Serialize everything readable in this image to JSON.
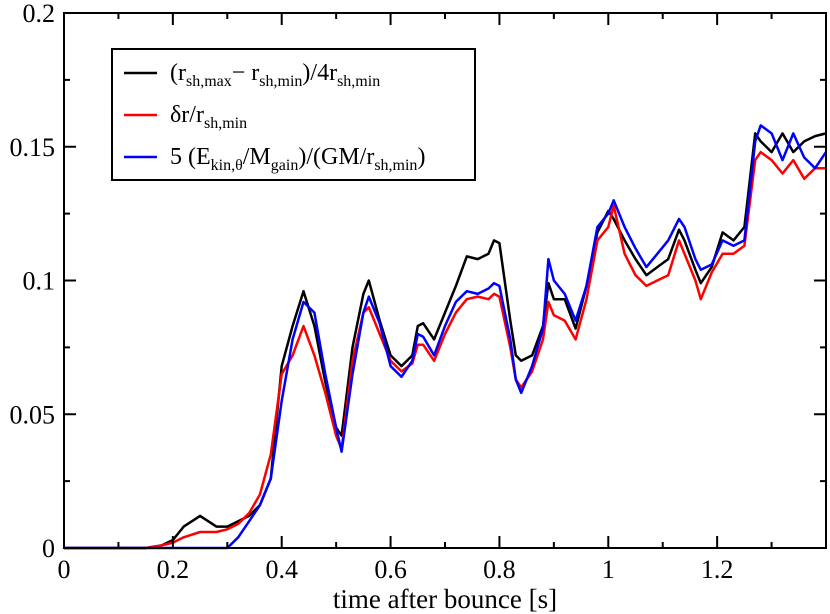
{
  "chart_data": {
    "type": "line",
    "title": "",
    "xlabel": "time after bounce [s]",
    "ylabel": "",
    "xlim": [
      0,
      1.4
    ],
    "ylim": [
      0,
      0.2
    ],
    "x_ticks": [
      0,
      0.2,
      0.4,
      0.6,
      0.8,
      1,
      1.2
    ],
    "x_tick_labels": [
      "0",
      "0.2",
      "0.4",
      "0.6",
      "0.8",
      "1",
      "1.2"
    ],
    "y_ticks": [
      0,
      0.05,
      0.1,
      0.15,
      0.2
    ],
    "y_tick_labels": [
      "0",
      "0.05",
      "0.1",
      "0.15",
      "0.2"
    ],
    "grid": false,
    "legend_position": "top-left",
    "legend": [
      {
        "key": "black",
        "parts": [
          [
            "(r",
            ""
          ],
          [
            "sh,max",
            "sub"
          ],
          [
            "− r",
            ""
          ],
          [
            "sh,min",
            "sub"
          ],
          [
            ")/4r",
            ""
          ],
          [
            "sh,min",
            "sub"
          ]
        ]
      },
      {
        "key": "red",
        "parts": [
          [
            "δr/r",
            ""
          ],
          [
            "sh,min",
            "sub"
          ]
        ]
      },
      {
        "key": "blue",
        "parts": [
          [
            "5 (E",
            ""
          ],
          [
            "kin,θ",
            "sub"
          ],
          [
            "/M",
            ""
          ],
          [
            "gain",
            "sub"
          ],
          [
            ")/(GM/r",
            ""
          ],
          [
            "sh,min",
            "sub"
          ],
          [
            ")",
            ""
          ]
        ]
      }
    ],
    "series": [
      {
        "key": "black",
        "color": "#000000",
        "x": [
          0,
          0.15,
          0.18,
          0.2,
          0.22,
          0.25,
          0.28,
          0.3,
          0.32,
          0.34,
          0.36,
          0.38,
          0.4,
          0.42,
          0.44,
          0.46,
          0.48,
          0.5,
          0.51,
          0.53,
          0.55,
          0.56,
          0.58,
          0.6,
          0.62,
          0.64,
          0.65,
          0.66,
          0.68,
          0.7,
          0.72,
          0.74,
          0.76,
          0.78,
          0.79,
          0.8,
          0.82,
          0.83,
          0.84,
          0.86,
          0.88,
          0.89,
          0.9,
          0.92,
          0.94,
          0.96,
          0.98,
          1.0,
          1.01,
          1.03,
          1.05,
          1.07,
          1.09,
          1.11,
          1.13,
          1.14,
          1.16,
          1.17,
          1.19,
          1.21,
          1.23,
          1.25,
          1.27,
          1.28,
          1.3,
          1.32,
          1.34,
          1.36,
          1.38,
          1.4
        ],
        "y": [
          0,
          0,
          0.001,
          0.003,
          0.008,
          0.012,
          0.008,
          0.008,
          0.01,
          0.012,
          0.016,
          0.026,
          0.068,
          0.083,
          0.096,
          0.083,
          0.062,
          0.045,
          0.042,
          0.075,
          0.095,
          0.1,
          0.085,
          0.072,
          0.068,
          0.072,
          0.083,
          0.084,
          0.078,
          0.088,
          0.098,
          0.109,
          0.108,
          0.11,
          0.115,
          0.114,
          0.085,
          0.072,
          0.07,
          0.072,
          0.083,
          0.099,
          0.093,
          0.093,
          0.082,
          0.098,
          0.118,
          0.126,
          0.123,
          0.115,
          0.108,
          0.102,
          0.105,
          0.108,
          0.119,
          0.115,
          0.104,
          0.099,
          0.105,
          0.118,
          0.115,
          0.12,
          0.155,
          0.152,
          0.148,
          0.155,
          0.148,
          0.152,
          0.154,
          0.155
        ]
      },
      {
        "key": "red",
        "color": "#ff0000",
        "x": [
          0,
          0.15,
          0.18,
          0.2,
          0.22,
          0.25,
          0.28,
          0.3,
          0.32,
          0.34,
          0.36,
          0.38,
          0.4,
          0.42,
          0.44,
          0.46,
          0.48,
          0.5,
          0.51,
          0.53,
          0.55,
          0.56,
          0.58,
          0.6,
          0.62,
          0.64,
          0.65,
          0.66,
          0.68,
          0.7,
          0.72,
          0.74,
          0.76,
          0.78,
          0.79,
          0.8,
          0.82,
          0.83,
          0.84,
          0.86,
          0.88,
          0.89,
          0.9,
          0.92,
          0.94,
          0.96,
          0.98,
          1.0,
          1.01,
          1.03,
          1.05,
          1.07,
          1.09,
          1.11,
          1.13,
          1.14,
          1.16,
          1.17,
          1.19,
          1.21,
          1.23,
          1.25,
          1.27,
          1.28,
          1.3,
          1.32,
          1.34,
          1.36,
          1.38,
          1.4
        ],
        "y": [
          0,
          0,
          0.001,
          0.002,
          0.004,
          0.006,
          0.006,
          0.007,
          0.009,
          0.013,
          0.02,
          0.035,
          0.065,
          0.072,
          0.083,
          0.072,
          0.058,
          0.042,
          0.037,
          0.07,
          0.088,
          0.09,
          0.08,
          0.07,
          0.066,
          0.069,
          0.076,
          0.076,
          0.07,
          0.08,
          0.088,
          0.093,
          0.094,
          0.093,
          0.095,
          0.094,
          0.075,
          0.063,
          0.06,
          0.066,
          0.078,
          0.092,
          0.087,
          0.085,
          0.078,
          0.093,
          0.115,
          0.12,
          0.128,
          0.11,
          0.102,
          0.098,
          0.1,
          0.102,
          0.115,
          0.11,
          0.1,
          0.093,
          0.103,
          0.11,
          0.11,
          0.113,
          0.145,
          0.148,
          0.145,
          0.14,
          0.145,
          0.138,
          0.142,
          0.142
        ]
      },
      {
        "key": "blue",
        "color": "#0000ff",
        "x": [
          0,
          0.15,
          0.18,
          0.2,
          0.22,
          0.25,
          0.28,
          0.3,
          0.32,
          0.34,
          0.36,
          0.38,
          0.4,
          0.42,
          0.44,
          0.46,
          0.48,
          0.5,
          0.51,
          0.53,
          0.55,
          0.56,
          0.58,
          0.6,
          0.62,
          0.64,
          0.65,
          0.66,
          0.68,
          0.7,
          0.72,
          0.74,
          0.76,
          0.78,
          0.79,
          0.8,
          0.82,
          0.83,
          0.84,
          0.86,
          0.88,
          0.89,
          0.9,
          0.92,
          0.94,
          0.96,
          0.98,
          1.0,
          1.01,
          1.03,
          1.05,
          1.07,
          1.09,
          1.11,
          1.13,
          1.14,
          1.16,
          1.17,
          1.19,
          1.21,
          1.23,
          1.25,
          1.27,
          1.28,
          1.3,
          1.32,
          1.34,
          1.36,
          1.38,
          1.4
        ],
        "y": [
          0,
          0,
          0,
          0,
          0,
          0,
          0,
          0,
          0.004,
          0.01,
          0.016,
          0.026,
          0.055,
          0.078,
          0.092,
          0.088,
          0.065,
          0.045,
          0.036,
          0.065,
          0.088,
          0.094,
          0.084,
          0.068,
          0.064,
          0.07,
          0.08,
          0.079,
          0.072,
          0.083,
          0.092,
          0.096,
          0.095,
          0.097,
          0.099,
          0.098,
          0.078,
          0.063,
          0.058,
          0.068,
          0.082,
          0.108,
          0.1,
          0.095,
          0.085,
          0.098,
          0.12,
          0.125,
          0.13,
          0.12,
          0.112,
          0.105,
          0.11,
          0.115,
          0.123,
          0.12,
          0.108,
          0.104,
          0.106,
          0.115,
          0.113,
          0.115,
          0.152,
          0.158,
          0.155,
          0.145,
          0.155,
          0.146,
          0.142,
          0.148
        ]
      }
    ]
  }
}
